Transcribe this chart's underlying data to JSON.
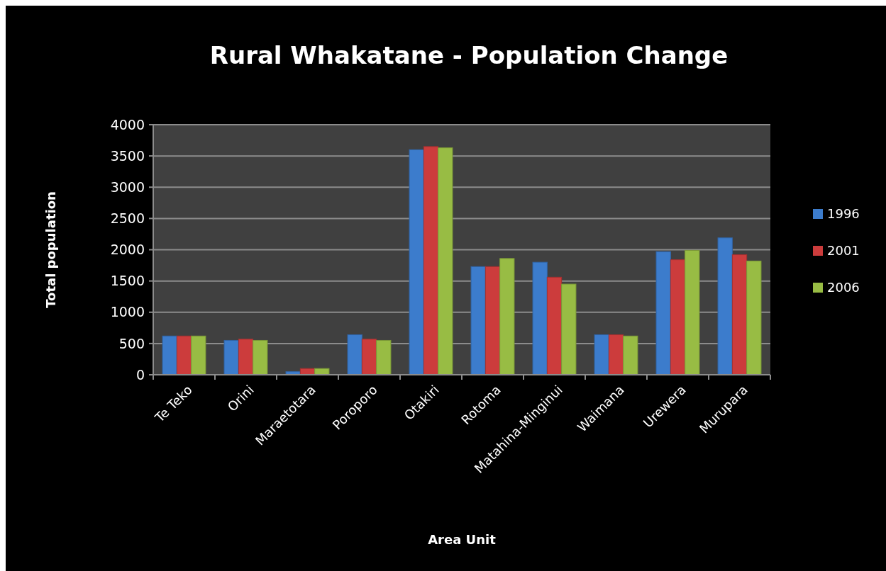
{
  "chart_data": {
    "type": "bar",
    "title": "Rural Whakatane - Population Change",
    "xlabel": "Area Unit",
    "ylabel": "Total population",
    "categories": [
      "Te Teko",
      "Orini",
      "Maraetotara",
      "Poroporo",
      "Otakiri",
      "Rotoma",
      "Matahina-Minginui",
      "Waimana",
      "Urewera",
      "Murupara"
    ],
    "series": [
      {
        "name": "1996",
        "color": "#3c7ccc",
        "values": [
          620,
          550,
          50,
          640,
          3600,
          1730,
          1800,
          640,
          1970,
          2190
        ]
      },
      {
        "name": "2001",
        "color": "#cc3c3c",
        "values": [
          620,
          570,
          100,
          570,
          3650,
          1730,
          1560,
          640,
          1840,
          1920
        ]
      },
      {
        "name": "2006",
        "color": "#98bc44",
        "values": [
          620,
          550,
          100,
          550,
          3630,
          1860,
          1450,
          620,
          1990,
          1820
        ]
      }
    ],
    "ylim": [
      0,
      4000
    ],
    "yticks": [
      0,
      500,
      1000,
      1500,
      2000,
      2500,
      3000,
      3500,
      4000
    ],
    "grid": "y",
    "legend": "right"
  }
}
